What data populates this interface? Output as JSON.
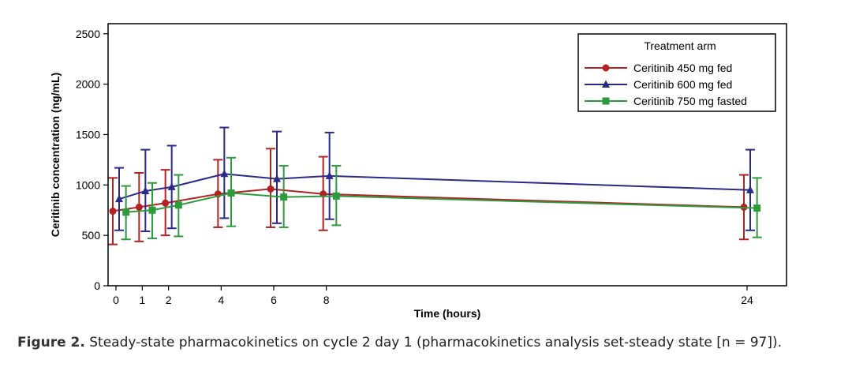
{
  "chart_data": {
    "type": "line",
    "title": "",
    "xlabel": "Time (hours)",
    "ylabel": "Ceritinib concentration (ng/mL)",
    "ylim": [
      0,
      2600
    ],
    "xlim": [
      -0.3,
      25.5
    ],
    "x_ticks": [
      0,
      1,
      2,
      4,
      6,
      8,
      24
    ],
    "y_ticks": [
      0,
      500,
      1000,
      1500,
      2000,
      2500
    ],
    "legend": {
      "title": "Treatment arm",
      "position": "top-right"
    },
    "series": [
      {
        "name": "Ceritinib 450 mg fed",
        "color": "#b22222",
        "marker": "circle",
        "x_offset": -0.12,
        "x": [
          0,
          1,
          2,
          4,
          6,
          8,
          24
        ],
        "y": [
          740,
          780,
          820,
          910,
          960,
          910,
          780
        ],
        "lower": [
          410,
          440,
          500,
          580,
          580,
          550,
          460
        ],
        "upper": [
          1070,
          1120,
          1150,
          1250,
          1360,
          1280,
          1100
        ]
      },
      {
        "name": "Ceritinib 600 mg fed",
        "color": "#2a2a8a",
        "marker": "triangle",
        "x_offset": 0.12,
        "x": [
          0,
          1,
          2,
          4,
          6,
          8,
          24
        ],
        "y": [
          860,
          940,
          980,
          1110,
          1060,
          1090,
          950
        ],
        "lower": [
          550,
          540,
          570,
          670,
          620,
          660,
          550
        ],
        "upper": [
          1170,
          1350,
          1390,
          1570,
          1530,
          1520,
          1350
        ]
      },
      {
        "name": "Ceritinib 750 mg fasted",
        "color": "#2e9a3e",
        "marker": "square",
        "x_offset": 0.38,
        "x": [
          0,
          1,
          2,
          4,
          6,
          8,
          24
        ],
        "y": [
          730,
          750,
          800,
          920,
          880,
          890,
          770
        ],
        "lower": [
          460,
          470,
          490,
          590,
          580,
          600,
          480
        ],
        "upper": [
          990,
          1020,
          1100,
          1270,
          1190,
          1190,
          1070
        ]
      }
    ]
  },
  "caption": {
    "label": "Figure 2.",
    "text": " Steady-state pharmacokinetics on cycle 2 day 1 (pharmacokinetics analysis set-steady state [n = 97])."
  }
}
